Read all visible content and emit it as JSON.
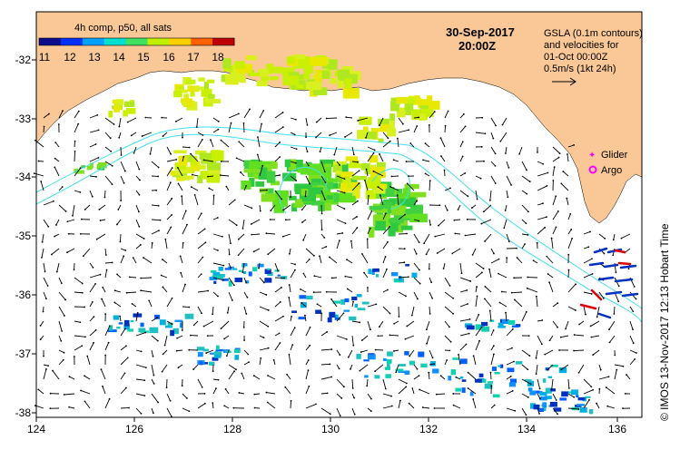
{
  "colorbar": {
    "title": "4h comp, p50, all sats",
    "ticks": [
      "11",
      "12",
      "13",
      "14",
      "15",
      "16",
      "17",
      "18"
    ],
    "colors": [
      "#0b0b8c",
      "#0030ff",
      "#00a0ff",
      "#00e0d0",
      "#40e060",
      "#c0f000",
      "#ffd000",
      "#ff6000",
      "#c00000"
    ]
  },
  "date_label": "30-Sep-2017",
  "time_label": "20:00Z",
  "gsla_note": {
    "line1": "GSLA (0.1m contours)",
    "line2": "and velocities for",
    "line3": "01-Oct 00:00Z",
    "line4": "0.5m/s (1kt 24h)"
  },
  "legend": {
    "glider": "Glider",
    "argo": "Argo",
    "glider_color": "#ff00ff",
    "argo_color": "#ff00ff"
  },
  "credit": "© IMOS 13-Nov-2017 12:13 Hobart Time",
  "axes": {
    "x_ticks": [
      "124",
      "126",
      "128",
      "130",
      "132",
      "134",
      "136"
    ],
    "y_ticks": [
      "-32",
      "-33",
      "-34",
      "-35",
      "-36",
      "-37",
      "-38"
    ]
  },
  "colors": {
    "land": "#f9c896",
    "contour": "#40e0f0",
    "arrow": "#000000"
  }
}
